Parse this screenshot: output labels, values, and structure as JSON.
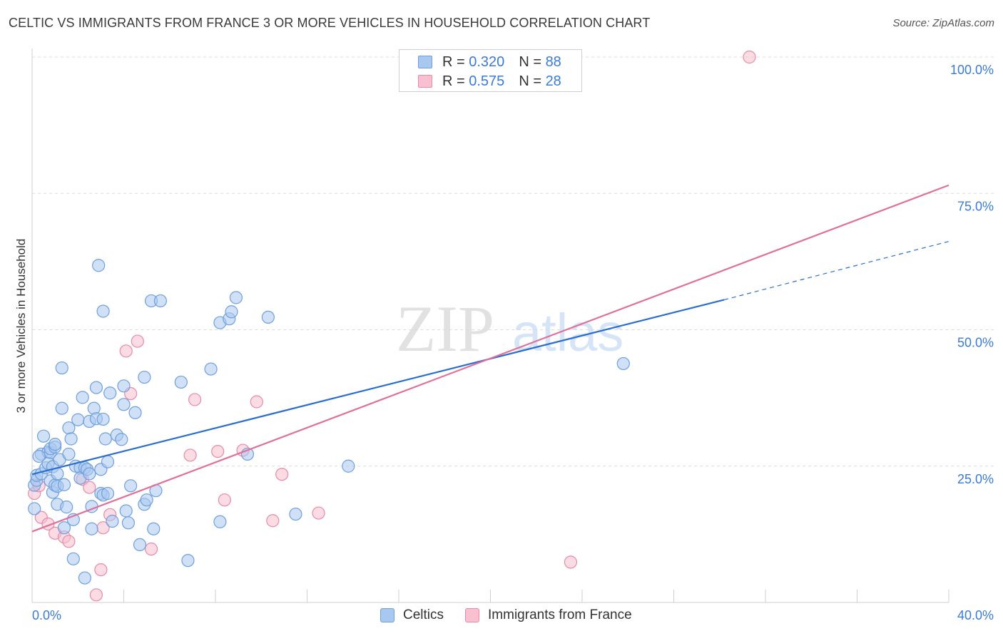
{
  "header": {
    "title": "CELTIC VS IMMIGRANTS FROM FRANCE 3 OR MORE VEHICLES IN HOUSEHOLD CORRELATION CHART",
    "source": "Source: ZipAtlas.com"
  },
  "watermark": {
    "zip": "ZIP",
    "atlas": "atlas"
  },
  "legend": {
    "rows": [
      {
        "r_label": "R =",
        "r_value": "0.320",
        "n_label": "N =",
        "n_value": "88",
        "color": "#a9c8f0",
        "border": "#6f9fdc"
      },
      {
        "r_label": "R =",
        "r_value": "0.575",
        "n_label": "N =",
        "n_value": "28",
        "color": "#f8c0d0",
        "border": "#e88aa6"
      }
    ]
  },
  "bottom_legend": {
    "items": [
      {
        "label": "Celtics",
        "color": "#a9c8f0",
        "border": "#6f9fdc"
      },
      {
        "label": "Immigrants from France",
        "color": "#f8c0d0",
        "border": "#e88aa6"
      }
    ]
  },
  "chart_data": {
    "type": "scatter",
    "title": "CELTIC VS IMMIGRANTS FROM FRANCE 3 OR MORE VEHICLES IN HOUSEHOLD CORRELATION CHART",
    "xlabel": "",
    "ylabel": "3 or more Vehicles in Household",
    "xlim": [
      0,
      40
    ],
    "ylim": [
      0,
      102
    ],
    "x_tick_labels": [
      "0.0%",
      "40.0%"
    ],
    "y_ticks": [
      25,
      50,
      75,
      100
    ],
    "y_tick_labels": [
      "25.0%",
      "50.0%",
      "75.0%",
      "100.0%"
    ],
    "grid": true,
    "legend_position": "top-center",
    "series": [
      {
        "name": "Celtics",
        "color": "#6f9fdc",
        "fill": "#a9c8f0",
        "line_color": "#2a6fd0",
        "trend": {
          "x_start": 0,
          "y_start": 23.5,
          "x_end": 30.2,
          "y_end": 55.5,
          "dashed_to_x": 40,
          "dashed_to_y": 66.2
        },
        "points": [
          [
            0.1,
            21.5
          ],
          [
            0.2,
            22.4
          ],
          [
            0.2,
            23.3
          ],
          [
            0.4,
            27.2
          ],
          [
            0.4,
            23.6
          ],
          [
            0.5,
            30.5
          ],
          [
            0.6,
            24.7
          ],
          [
            0.7,
            27.6
          ],
          [
            0.7,
            25.5
          ],
          [
            0.8,
            22.3
          ],
          [
            0.8,
            27.5
          ],
          [
            0.8,
            28.2
          ],
          [
            0.9,
            20.2
          ],
          [
            0.9,
            24.9
          ],
          [
            1.0,
            28.5
          ],
          [
            1.0,
            21.5
          ],
          [
            1.0,
            29.0
          ],
          [
            1.1,
            18.0
          ],
          [
            1.1,
            21.3
          ],
          [
            1.2,
            26.2
          ],
          [
            1.3,
            35.6
          ],
          [
            1.4,
            13.7
          ],
          [
            1.4,
            21.6
          ],
          [
            1.5,
            17.5
          ],
          [
            1.6,
            27.2
          ],
          [
            1.6,
            32.0
          ],
          [
            1.7,
            30.0
          ],
          [
            1.8,
            8.0
          ],
          [
            1.8,
            15.2
          ],
          [
            1.9,
            25.0
          ],
          [
            2.0,
            33.5
          ],
          [
            2.1,
            24.7
          ],
          [
            2.1,
            22.8
          ],
          [
            2.2,
            37.6
          ],
          [
            2.3,
            24.7
          ],
          [
            2.3,
            4.5
          ],
          [
            2.4,
            24.4
          ],
          [
            2.5,
            33.2
          ],
          [
            2.5,
            23.6
          ],
          [
            2.6,
            17.6
          ],
          [
            2.6,
            13.5
          ],
          [
            2.7,
            35.6
          ],
          [
            2.8,
            39.4
          ],
          [
            2.8,
            33.7
          ],
          [
            2.9,
            61.8
          ],
          [
            3.0,
            20.0
          ],
          [
            3.0,
            24.4
          ],
          [
            3.1,
            33.6
          ],
          [
            3.1,
            19.7
          ],
          [
            3.1,
            53.4
          ],
          [
            3.2,
            30.0
          ],
          [
            3.3,
            25.8
          ],
          [
            3.4,
            38.4
          ],
          [
            3.5,
            14.9
          ],
          [
            3.7,
            30.7
          ],
          [
            3.9,
            29.9
          ],
          [
            4.0,
            36.3
          ],
          [
            4.0,
            39.7
          ],
          [
            4.1,
            16.8
          ],
          [
            4.2,
            14.6
          ],
          [
            4.3,
            21.4
          ],
          [
            4.5,
            34.8
          ],
          [
            4.7,
            10.6
          ],
          [
            4.9,
            41.3
          ],
          [
            4.9,
            18.0
          ],
          [
            5.0,
            18.8
          ],
          [
            5.2,
            55.3
          ],
          [
            5.3,
            13.5
          ],
          [
            5.4,
            20.5
          ],
          [
            5.6,
            55.3
          ],
          [
            6.5,
            40.4
          ],
          [
            6.8,
            7.7
          ],
          [
            7.8,
            42.8
          ],
          [
            8.2,
            14.8
          ],
          [
            8.2,
            51.3
          ],
          [
            8.6,
            52.0
          ],
          [
            8.7,
            53.3
          ],
          [
            8.9,
            55.9
          ],
          [
            9.4,
            27.2
          ],
          [
            10.3,
            52.3
          ],
          [
            11.5,
            16.2
          ],
          [
            13.8,
            25.0
          ],
          [
            25.8,
            43.8
          ],
          [
            0.1,
            17.2
          ],
          [
            1.3,
            43.0
          ],
          [
            3.3,
            20.0
          ],
          [
            1.1,
            23.6
          ],
          [
            0.3,
            26.8
          ]
        ]
      },
      {
        "name": "Immigrants from France",
        "color": "#e88aa6",
        "fill": "#f8c0d0",
        "line_color": "#e0709a",
        "trend": {
          "x_start": 0,
          "y_start": 13.0,
          "x_end": 40,
          "y_end": 76.5
        },
        "points": [
          [
            0.1,
            20.0
          ],
          [
            0.3,
            21.4
          ],
          [
            0.4,
            15.6
          ],
          [
            0.7,
            14.4
          ],
          [
            1.0,
            12.7
          ],
          [
            1.4,
            12.0
          ],
          [
            1.6,
            11.2
          ],
          [
            2.2,
            22.6
          ],
          [
            2.5,
            21.1
          ],
          [
            2.8,
            1.4
          ],
          [
            3.0,
            6.0
          ],
          [
            3.1,
            13.7
          ],
          [
            3.4,
            16.1
          ],
          [
            4.1,
            46.1
          ],
          [
            4.3,
            38.3
          ],
          [
            4.6,
            47.9
          ],
          [
            5.2,
            9.8
          ],
          [
            6.9,
            27.0
          ],
          [
            7.1,
            37.2
          ],
          [
            8.1,
            27.7
          ],
          [
            8.4,
            18.8
          ],
          [
            9.2,
            27.9
          ],
          [
            9.8,
            36.8
          ],
          [
            10.5,
            15.0
          ],
          [
            10.9,
            23.5
          ],
          [
            12.5,
            16.4
          ],
          [
            23.5,
            7.4
          ],
          [
            31.3,
            100.0
          ]
        ]
      }
    ]
  }
}
